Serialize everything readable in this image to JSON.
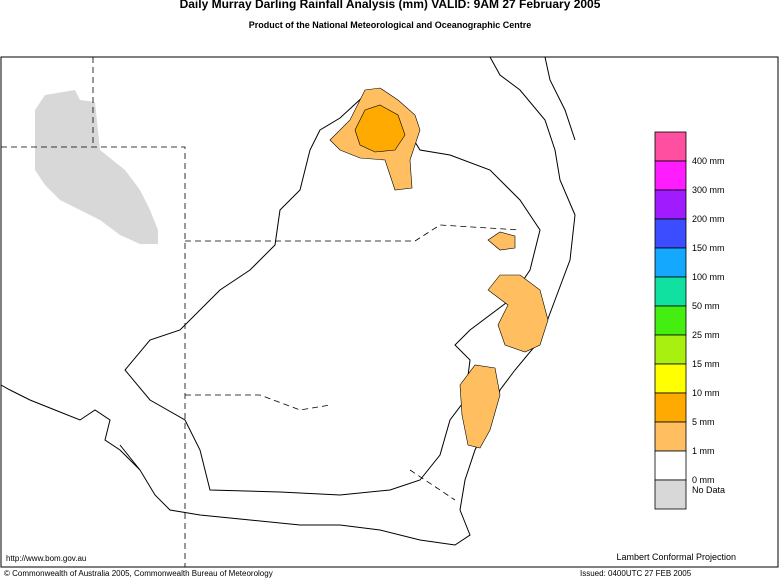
{
  "header": {
    "title": "Daily Murray Darling Rainfall Analysis (mm)  VALID: 9AM 27 February 2005",
    "subtitle": "Product of the National Meteorological and Oceanographic Centre"
  },
  "legend": {
    "items": [
      {
        "label": "400 mm",
        "color": "#ff4fa0"
      },
      {
        "label": "300 mm",
        "color": "#ff1cff"
      },
      {
        "label": "200 mm",
        "color": "#a01cff"
      },
      {
        "label": "150 mm",
        "color": "#3c4cff"
      },
      {
        "label": "100 mm",
        "color": "#14a8ff"
      },
      {
        "label": "50 mm",
        "color": "#10e0a0"
      },
      {
        "label": "25 mm",
        "color": "#44ee10"
      },
      {
        "label": "15 mm",
        "color": "#a8f010"
      },
      {
        "label": "10 mm",
        "color": "#ffff00"
      },
      {
        "label": "5 mm",
        "color": "#ffaa00"
      },
      {
        "label": "1 mm",
        "color": "#ffbf60"
      },
      {
        "label": "0 mm",
        "color": "#ffffff"
      },
      {
        "label": "No Data",
        "color": "#d8d8d8"
      }
    ]
  },
  "footer": {
    "url": "http://www.bom.gov.au",
    "projection": "Lambert Conformal Projection",
    "copyright": "© Commonwealth of Australia 2005, Commonwealth Bureau of Meteorology",
    "issued": "Issued: 0400UTC 27 FEB 2005"
  }
}
